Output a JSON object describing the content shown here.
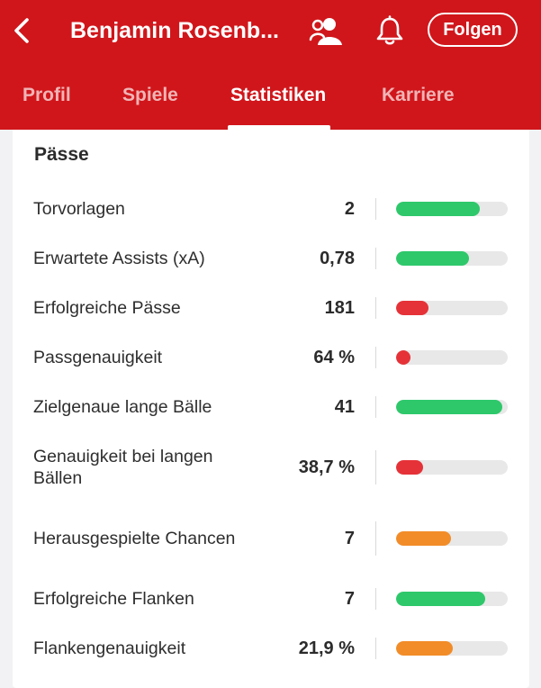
{
  "header": {
    "title": "Benjamin Rosenb...",
    "follow_label": "Folgen",
    "icons": {
      "back": "chevron-left-icon",
      "person": "person-with-group-icon",
      "bell": "bell-icon"
    },
    "brand_color": "#d0161b"
  },
  "tabs": [
    {
      "label": "Profil",
      "active": false
    },
    {
      "label": "Spiele",
      "active": false
    },
    {
      "label": "Statistiken",
      "active": true
    },
    {
      "label": "Karriere",
      "active": false
    }
  ],
  "section": {
    "title": "Pässe",
    "rows": [
      {
        "label": "Torvorlagen",
        "value": "2",
        "fill": 0.75,
        "color": "#2ec86b"
      },
      {
        "label": "Erwartete Assists (xA)",
        "value": "0,78",
        "fill": 0.65,
        "color": "#2ec86b"
      },
      {
        "label": "Erfolgreiche Pässe",
        "value": "181",
        "fill": 0.29,
        "color": "#e53238"
      },
      {
        "label": "Passgenauigkeit",
        "value": "64 %",
        "fill": 0.12,
        "color": "#e53238"
      },
      {
        "label": "Zielgenaue lange Bälle",
        "value": "41",
        "fill": 0.95,
        "color": "#2ec86b"
      },
      {
        "label": "Genauigkeit bei langen Bällen",
        "value": "38,7 %",
        "fill": 0.24,
        "color": "#e53238"
      },
      {
        "label": "Herausgespielte Chancen",
        "value": "7",
        "fill": 0.49,
        "color": "#f28c28"
      },
      {
        "label": "Erfolgreiche Flanken",
        "value": "7",
        "fill": 0.8,
        "color": "#2ec86b"
      },
      {
        "label": "Flankengenauigkeit",
        "value": "21,9 %",
        "fill": 0.51,
        "color": "#f28c28"
      }
    ]
  }
}
